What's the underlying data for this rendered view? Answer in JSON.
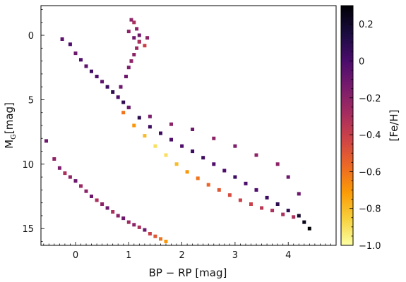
{
  "chart_data": {
    "type": "scatter",
    "title": "",
    "xlabel": "BP − RP [mag]",
    "ylabel_main": "M",
    "ylabel_sub": "G",
    "ylabel_unit": "[mag]",
    "xlim": [
      -0.65,
      4.9
    ],
    "ylim": [
      16.3,
      -2.3
    ],
    "y_inverted": true,
    "x_ticks": [
      0,
      1,
      2,
      3,
      4
    ],
    "y_ticks": [
      0,
      5,
      10,
      15
    ],
    "grid": false,
    "colorbar": {
      "label": "[Fe/H]",
      "min": -1.0,
      "max": 0.3,
      "ticks": [
        "0.2",
        "0",
        "−0.2",
        "−0.4",
        "−0.6",
        "−0.8",
        "−1.0"
      ],
      "tick_values": [
        0.2,
        0,
        -0.2,
        -0.4,
        -0.6,
        -0.8,
        -1.0
      ],
      "colormap": "inferno_r",
      "colors": [
        "#fcffa4",
        "#f7d13d",
        "#fb9b06",
        "#ed6925",
        "#cf4446",
        "#a52c60",
        "#781c6d",
        "#4a0c6b",
        "#1b0c41",
        "#000004"
      ]
    },
    "series": [
      {
        "region": "white dwarf sequence",
        "x": [
          -0.55,
          -0.4,
          -0.3,
          -0.2,
          -0.1,
          0.0,
          0.1,
          0.2,
          0.3,
          0.4,
          0.5,
          0.6,
          0.7,
          0.8,
          0.9,
          1.0,
          1.1,
          1.2,
          1.3,
          1.4,
          1.5,
          1.6,
          1.7
        ],
        "y": [
          8.2,
          9.6,
          10.3,
          10.7,
          11.0,
          11.3,
          11.7,
          12.1,
          12.5,
          12.8,
          13.1,
          13.4,
          13.7,
          14.0,
          14.2,
          14.5,
          14.7,
          14.9,
          15.1,
          15.4,
          15.6,
          15.8,
          16.0
        ],
        "feh": [
          -0.1,
          -0.2,
          -0.15,
          -0.3,
          -0.2,
          -0.1,
          -0.25,
          -0.2,
          -0.1,
          -0.3,
          -0.2,
          -0.1,
          -0.3,
          -0.2,
          -0.1,
          -0.25,
          -0.2,
          -0.3,
          -0.1,
          -0.4,
          -0.5,
          -0.6,
          -0.7
        ]
      },
      {
        "region": "main sequence",
        "x": [
          -0.25,
          -0.1,
          0.0,
          0.1,
          0.2,
          0.3,
          0.4,
          0.5,
          0.6,
          0.7,
          0.8,
          0.9,
          1.0,
          1.2,
          1.4,
          1.6,
          1.8,
          2.0,
          2.2,
          2.4,
          2.6,
          2.8,
          3.0,
          3.2,
          3.4,
          3.6,
          3.8,
          4.0,
          4.2,
          4.3,
          4.4
        ],
        "y": [
          0.3,
          0.7,
          1.4,
          1.9,
          2.4,
          2.8,
          3.2,
          3.6,
          4.0,
          4.4,
          4.8,
          5.2,
          5.6,
          6.4,
          7.1,
          7.6,
          8.1,
          8.6,
          9.0,
          9.5,
          10.0,
          10.5,
          11.0,
          11.5,
          12.0,
          12.6,
          13.1,
          13.6,
          14.0,
          14.5,
          15.0
        ],
        "feh": [
          -0.05,
          0.0,
          -0.1,
          0.0,
          -0.05,
          0.05,
          0.0,
          -0.05,
          0.05,
          0.1,
          0.0,
          0.1,
          0.15,
          0.1,
          0.05,
          0.05,
          0.0,
          0.0,
          0.05,
          0.05,
          0.0,
          0.0,
          0.05,
          0.0,
          0.0,
          0.05,
          0.1,
          0.1,
          0.2,
          0.25,
          0.3
        ]
      },
      {
        "region": "metal-poor main sequence",
        "x": [
          0.9,
          1.1,
          1.3,
          1.5,
          1.7,
          1.9,
          2.1,
          2.3,
          2.5,
          2.7,
          2.9,
          3.1,
          3.3,
          3.5,
          3.7,
          3.9,
          4.1
        ],
        "y": [
          6.0,
          7.0,
          7.8,
          8.6,
          9.3,
          10.0,
          10.6,
          11.1,
          11.6,
          12.0,
          12.4,
          12.8,
          13.1,
          13.4,
          13.6,
          13.9,
          14.1
        ],
        "feh": [
          -0.6,
          -0.7,
          -0.8,
          -0.9,
          -0.9,
          -0.8,
          -0.7,
          -0.6,
          -0.55,
          -0.5,
          -0.45,
          -0.4,
          -0.4,
          -0.35,
          -0.3,
          -0.3,
          -0.3
        ]
      },
      {
        "region": "subgiant and red giant branch",
        "x": [
          0.85,
          0.95,
          1.0,
          1.05,
          1.1,
          1.15,
          1.2,
          1.2,
          1.15,
          1.1,
          1.05,
          1.0,
          1.1,
          1.2,
          1.3,
          1.35
        ],
        "y": [
          4.0,
          3.2,
          2.5,
          2.0,
          1.5,
          1.0,
          0.5,
          0.0,
          -0.5,
          -1.0,
          -1.2,
          -0.3,
          0.2,
          0.5,
          0.8,
          0.2
        ],
        "feh": [
          -0.1,
          -0.1,
          -0.15,
          -0.2,
          -0.2,
          -0.25,
          -0.15,
          -0.1,
          -0.2,
          -0.3,
          -0.2,
          -0.2,
          -0.1,
          -0.3,
          -0.4,
          -0.2
        ]
      },
      {
        "region": "upper main sequence scatter",
        "x": [
          1.0,
          1.4,
          1.8,
          2.2,
          2.6,
          3.0,
          3.4,
          3.8,
          4.0,
          4.2
        ],
        "y": [
          5.6,
          6.3,
          6.9,
          7.3,
          8.0,
          8.6,
          9.3,
          10.0,
          11.0,
          12.3
        ],
        "feh": [
          -0.1,
          -0.15,
          -0.2,
          -0.1,
          -0.2,
          -0.15,
          -0.2,
          -0.2,
          -0.1,
          -0.1
        ]
      }
    ]
  }
}
